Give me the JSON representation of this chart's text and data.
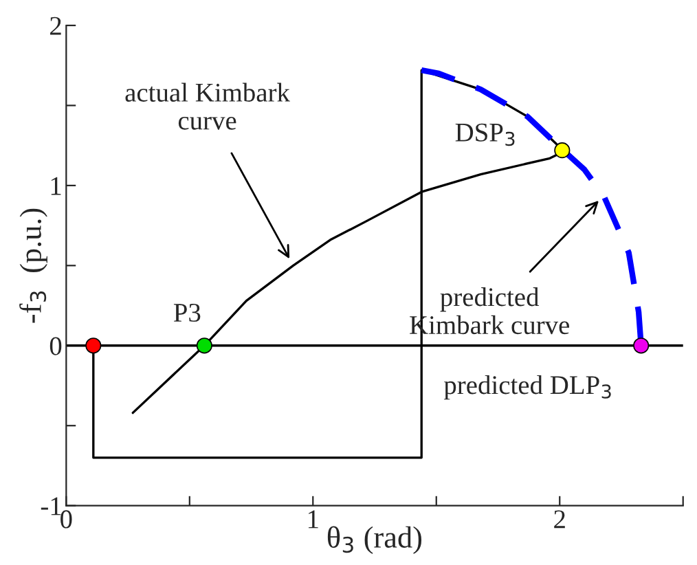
{
  "chart_data": {
    "type": "line",
    "xlabel": "θ$_{3}$ (rad)",
    "ylabel": "-f$_{3}$  (p.u.)",
    "xlim": [
      0,
      2.5
    ],
    "ylim": [
      -1,
      2
    ],
    "xticks": [
      0,
      {
        "value": 0.5,
        "label": null
      },
      1,
      {
        "value": 1.5,
        "label": null
      },
      2,
      {
        "value": 2.5,
        "label": null
      }
    ],
    "yticks": [
      -1,
      {
        "value": -0.5,
        "label": null
      },
      0,
      {
        "value": 0.5,
        "label": null
      },
      1,
      {
        "value": 1.5,
        "label": null
      },
      2
    ],
    "series": [
      {
        "color": "#000000",
        "line_style": "solid",
        "x": [
          0.27,
          0.56,
          0.73,
          0.92,
          1.07,
          1.22,
          1.44,
          1.68,
          1.96,
          2.0
        ],
        "values": [
          -0.42,
          0,
          0.28,
          0.5,
          0.66,
          0.78,
          0.96,
          1.07,
          1.17,
          1.2
        ]
      },
      {
        "color": "#000000",
        "line_style": "solid",
        "x": [
          0.11,
          0.11,
          1.44,
          1.44,
          1.68,
          1.87,
          2.0
        ],
        "values": [
          0,
          -0.7,
          -0.7,
          1.72,
          1.6,
          1.43,
          1.24
        ]
      },
      {
        "color": "#0000ff",
        "line_style": "dashed",
        "x": [
          1.44,
          1.51,
          1.68,
          1.87,
          2.0,
          2.1,
          2.18,
          2.28,
          2.32,
          2.33
        ],
        "values": [
          1.72,
          1.7,
          1.6,
          1.43,
          1.24,
          1.1,
          0.93,
          0.58,
          0.21,
          0
        ]
      },
      {
        "type": "scatter",
        "marker": "circle",
        "colors": [
          "#ff0000",
          "#00dd00",
          "#ffff00",
          "#ee00ee"
        ],
        "x": [
          0.11,
          0.56,
          2.01,
          2.33
        ],
        "values": [
          0,
          0,
          1.22,
          0
        ]
      }
    ],
    "ref_lines": [
      {
        "axis": "y",
        "value": 0,
        "color": "#000000"
      }
    ],
    "annotations": [
      {
        "text": "actual Kimbark\ncurve",
        "x": 0.92,
        "y": 0.5
      },
      {
        "text": "predicted\nKimbark curve",
        "x": 2.18,
        "y": 0.94
      },
      {
        "text": "P3",
        "x": 0.56,
        "y": 0
      },
      {
        "text": "DSP$_{3}$",
        "x": 2.01,
        "y": 1.22
      },
      {
        "text": "predicted DLP$_{3}$",
        "x": 2.33,
        "y": 0
      }
    ],
    "grid": false
  }
}
